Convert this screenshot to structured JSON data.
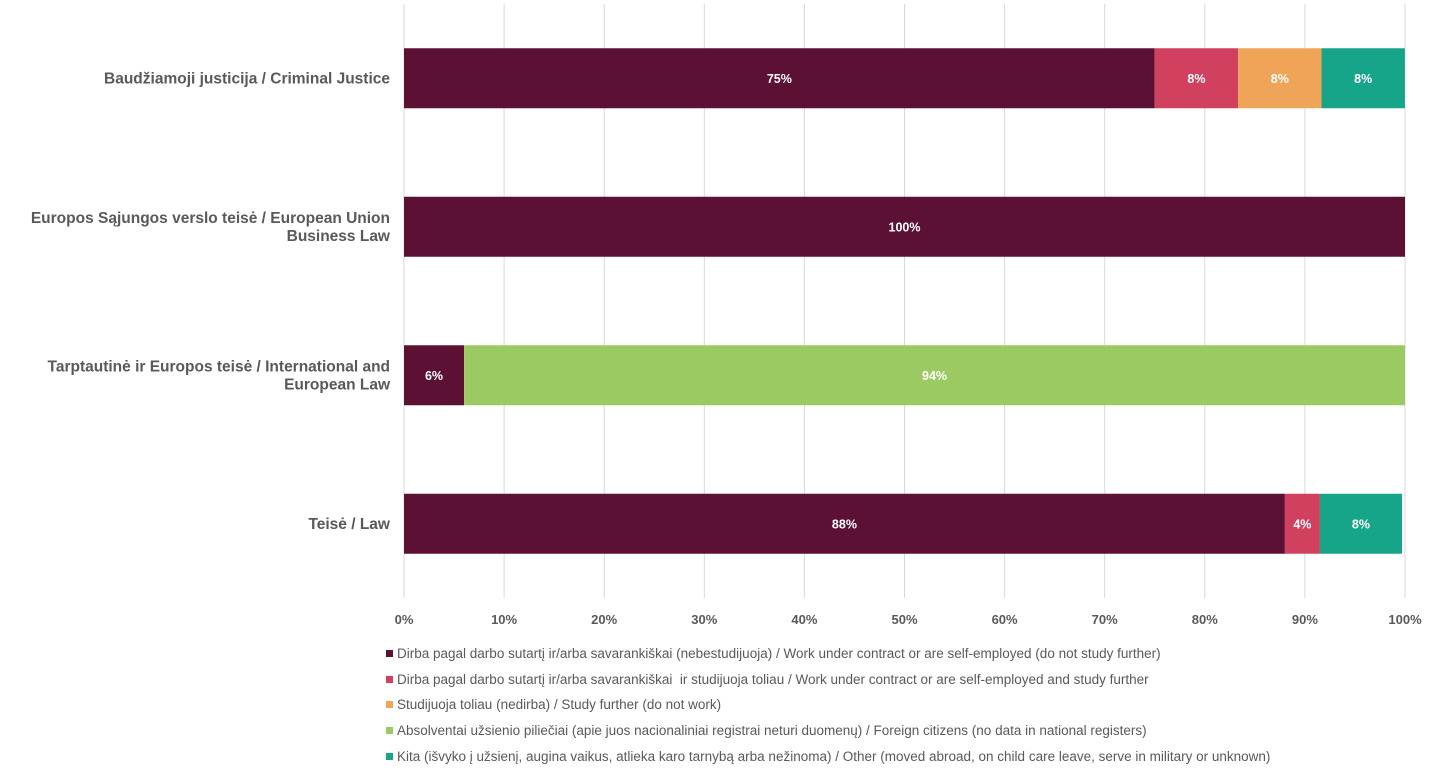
{
  "chart_data": {
    "type": "bar",
    "orientation": "horizontal",
    "stacked": true,
    "categories": [
      "Baudžiamoji justicija / Criminal Justice",
      "Europos Sąjungos verslo teisė / European Union Business Law",
      "Tarptautinė ir Europos teisė / International and European Law",
      "Teisė / Law"
    ],
    "category_lines": [
      [
        "Baudžiamoji justicija / Criminal Justice"
      ],
      [
        "Europos Sąjungos verslo teisė / European Union",
        "Business Law"
      ],
      [
        "Tarptautinė ir Europos teisė / International and",
        "European Law"
      ],
      [
        "Teisė / Law"
      ]
    ],
    "series": [
      {
        "name": "Dirba pagal darbo sutartį ir/arba savarankiškai (nebestudijuoja) / Work under contract or are self-employed (do not study further)",
        "color": "#5c1034",
        "values": [
          75,
          100,
          6,
          88
        ],
        "labels": [
          "75%",
          "100%",
          "6%",
          "88%"
        ]
      },
      {
        "name": "Dirba pagal darbo sutartį ir/arba savarankiškai  ir studijuoja toliau / Work under contract or are self-employed and study further",
        "color": "#d1415f",
        "values": [
          8.33,
          0,
          0,
          3.5
        ],
        "labels": [
          "8%",
          "",
          "",
          "4%"
        ]
      },
      {
        "name": "Studijuoja toliau (nedirba) / Study further (do not work)",
        "color": "#f0a458",
        "values": [
          8.33,
          0,
          0,
          0
        ],
        "labels": [
          "8%",
          "",
          "",
          ""
        ]
      },
      {
        "name": "Absolventai užsienio piliečiai (apie juos nacionaliniai registrai neturi duomenų) / Foreign citizens (no data in national registers)",
        "color": "#9bca62",
        "values": [
          0,
          0,
          94,
          0
        ],
        "labels": [
          "",
          "",
          "94%",
          ""
        ]
      },
      {
        "name": "Kita (išvyko į užsienį, augina vaikus, atlieka karo tarnybą arba nežinoma) / Other (moved abroad, on child care leave, serve in military or unknown)",
        "color": "#17a58a",
        "values": [
          8.33,
          0,
          0,
          8.2
        ],
        "labels": [
          "8%",
          "",
          "",
          "8%"
        ]
      }
    ],
    "xlim": [
      0,
      100
    ],
    "xticks": [
      "0%",
      "10%",
      "20%",
      "30%",
      "40%",
      "50%",
      "60%",
      "70%",
      "80%",
      "90%",
      "100%"
    ],
    "grid": "vertical",
    "legend_position": "bottom"
  }
}
